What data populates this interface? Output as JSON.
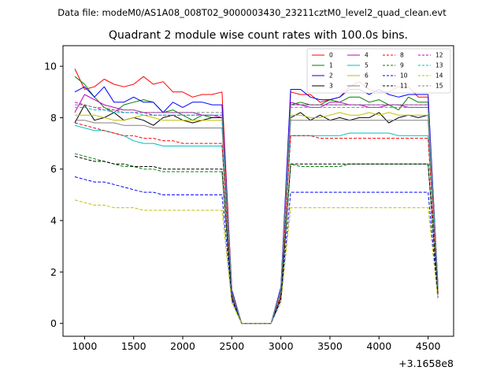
{
  "chart_data": {
    "type": "line",
    "suptitle": "Data file: modeM0/AS1A08_008T02_9000003430_23211cztM0_level2_quad_clean.evt",
    "title": "Quadrant 2 module wise count rates with 100.0s bins.",
    "xlabel": "",
    "ylabel": "",
    "x_offset_label": "+3.1658e8",
    "xlim": [
      780,
      4760
    ],
    "ylim": [
      -0.5,
      10.8
    ],
    "x_ticks": [
      1000,
      1500,
      2000,
      2500,
      3000,
      3500,
      4000,
      4500
    ],
    "x_tick_labels": [
      "1000",
      "1500",
      "2000",
      "2500",
      "3000",
      "3500",
      "4000",
      "4500"
    ],
    "y_ticks": [
      0,
      2,
      4,
      6,
      8,
      10
    ],
    "y_tick_labels": [
      "0",
      "2",
      "4",
      "6",
      "8",
      "10"
    ],
    "legend_location": "upper right",
    "legend_columns": 4,
    "x": [
      900,
      1000,
      1100,
      1200,
      1300,
      1400,
      1500,
      1600,
      1700,
      1800,
      1900,
      2000,
      2100,
      2200,
      2300,
      2400,
      2500,
      2600,
      2700,
      2800,
      2900,
      3000,
      3100,
      3200,
      3300,
      3400,
      3500,
      3600,
      3700,
      3800,
      3900,
      4000,
      4100,
      4200,
      4300,
      4400,
      4500,
      4600
    ],
    "series": [
      {
        "name": "0",
        "color": "#ff0000",
        "dash": "solid",
        "values": [
          9.9,
          9.1,
          9.2,
          9.5,
          9.3,
          9.2,
          9.3,
          9.6,
          9.3,
          9.4,
          9.0,
          9.0,
          8.8,
          8.9,
          8.9,
          9.0,
          1.3,
          0.0,
          0.0,
          0.0,
          0.0,
          1.4,
          9.0,
          8.9,
          8.9,
          8.6,
          8.7,
          8.8,
          9.2,
          9.4,
          9.1,
          9.0,
          9.0,
          9.2,
          9.2,
          8.8,
          8.8,
          1.5
        ]
      },
      {
        "name": "1",
        "color": "#008000",
        "dash": "solid",
        "values": [
          9.6,
          9.3,
          8.8,
          8.4,
          8.2,
          8.5,
          8.6,
          8.7,
          8.6,
          8.2,
          8.3,
          8.1,
          7.9,
          8.1,
          8.0,
          8.0,
          1.2,
          0.0,
          0.0,
          0.0,
          0.0,
          1.3,
          8.5,
          8.6,
          8.5,
          8.5,
          8.7,
          8.6,
          8.8,
          8.8,
          8.6,
          8.7,
          8.5,
          8.3,
          8.8,
          8.6,
          8.6,
          1.5
        ]
      },
      {
        "name": "2",
        "color": "#0000ff",
        "dash": "solid",
        "values": [
          9.0,
          9.2,
          8.8,
          9.2,
          8.6,
          8.6,
          8.8,
          8.6,
          8.6,
          8.2,
          8.6,
          8.4,
          8.6,
          8.6,
          8.5,
          8.5,
          1.3,
          0.0,
          0.0,
          0.0,
          0.0,
          1.4,
          9.1,
          9.1,
          8.8,
          8.7,
          8.7,
          8.8,
          9.1,
          9.1,
          8.9,
          9.1,
          8.9,
          8.8,
          8.9,
          8.9,
          8.9,
          1.4
        ]
      },
      {
        "name": "3",
        "color": "#000000",
        "dash": "solid",
        "values": [
          7.8,
          8.5,
          7.9,
          8.0,
          8.2,
          7.9,
          8.0,
          7.9,
          7.7,
          8.0,
          8.1,
          7.9,
          7.8,
          7.9,
          8.0,
          8.0,
          1.2,
          0.0,
          0.0,
          0.0,
          0.0,
          1.2,
          8.0,
          8.2,
          7.9,
          8.1,
          7.9,
          8.0,
          7.9,
          8.0,
          8.0,
          8.2,
          7.8,
          8.0,
          8.1,
          8.0,
          8.1,
          1.3
        ]
      },
      {
        "name": "4",
        "color": "#bf00bf",
        "dash": "solid",
        "values": [
          8.2,
          8.9,
          8.7,
          8.5,
          8.4,
          8.3,
          8.3,
          8.2,
          8.2,
          8.2,
          8.2,
          8.2,
          8.2,
          8.1,
          8.1,
          8.0,
          1.2,
          0.0,
          0.0,
          0.0,
          0.0,
          1.3,
          8.6,
          8.5,
          8.4,
          8.4,
          8.6,
          8.6,
          8.5,
          8.5,
          8.4,
          8.4,
          8.5,
          8.5,
          8.4,
          8.4,
          8.4,
          1.4
        ]
      },
      {
        "name": "5",
        "color": "#00bfbf",
        "dash": "solid",
        "values": [
          7.7,
          7.6,
          7.5,
          7.5,
          7.4,
          7.3,
          7.1,
          7.0,
          7.0,
          6.9,
          6.9,
          6.9,
          6.9,
          6.9,
          6.9,
          6.9,
          1.1,
          0.0,
          0.0,
          0.0,
          0.0,
          1.2,
          7.3,
          7.3,
          7.3,
          7.3,
          7.3,
          7.3,
          7.4,
          7.4,
          7.4,
          7.4,
          7.4,
          7.3,
          7.3,
          7.3,
          7.3,
          1.3
        ]
      },
      {
        "name": "6",
        "color": "#bfbf00",
        "dash": "solid",
        "values": [
          8.1,
          8.1,
          8.1,
          8.0,
          7.9,
          7.9,
          8.0,
          8.1,
          8.0,
          7.9,
          7.9,
          7.9,
          7.9,
          7.9,
          7.9,
          7.9,
          1.2,
          0.0,
          0.0,
          0.0,
          0.0,
          1.2,
          8.1,
          8.1,
          8.0,
          8.0,
          8.1,
          8.2,
          8.1,
          8.1,
          8.2,
          8.1,
          8.2,
          8.1,
          8.1,
          8.1,
          8.1,
          1.3
        ]
      },
      {
        "name": "7",
        "color": "#808080",
        "dash": "solid",
        "values": [
          7.9,
          7.9,
          7.8,
          7.8,
          7.8,
          7.7,
          7.7,
          7.7,
          7.6,
          7.6,
          7.6,
          7.6,
          7.6,
          7.6,
          7.6,
          7.6,
          1.1,
          0.0,
          0.0,
          0.0,
          0.0,
          1.2,
          7.9,
          7.9,
          7.9,
          7.9,
          7.9,
          7.9,
          7.9,
          7.9,
          7.9,
          7.9,
          7.9,
          7.9,
          7.9,
          7.9,
          7.9,
          1.3
        ]
      },
      {
        "name": "8",
        "color": "#ff0000",
        "dash": "dashed",
        "values": [
          7.8,
          7.7,
          7.6,
          7.5,
          7.4,
          7.3,
          7.3,
          7.2,
          7.2,
          7.1,
          7.1,
          7.0,
          7.0,
          7.0,
          7.0,
          7.0,
          1.1,
          0.0,
          0.0,
          0.0,
          0.0,
          1.1,
          7.3,
          7.3,
          7.3,
          7.2,
          7.2,
          7.2,
          7.2,
          7.2,
          7.2,
          7.2,
          7.2,
          7.2,
          7.2,
          7.2,
          7.2,
          1.2
        ]
      },
      {
        "name": "9",
        "color": "#008000",
        "dash": "dashed",
        "values": [
          6.6,
          6.5,
          6.4,
          6.3,
          6.2,
          6.1,
          6.1,
          6.0,
          6.0,
          5.9,
          5.9,
          5.9,
          5.9,
          5.9,
          5.9,
          5.9,
          1.0,
          0.0,
          0.0,
          0.0,
          0.0,
          1.0,
          6.2,
          6.1,
          6.1,
          6.1,
          6.1,
          6.1,
          6.2,
          6.2,
          6.2,
          6.2,
          6.2,
          6.2,
          6.2,
          6.2,
          6.2,
          1.1
        ]
      },
      {
        "name": "10",
        "color": "#0000ff",
        "dash": "dashed",
        "values": [
          5.7,
          5.6,
          5.5,
          5.5,
          5.4,
          5.3,
          5.2,
          5.1,
          5.1,
          5.0,
          5.0,
          5.0,
          5.0,
          5.0,
          5.0,
          5.0,
          0.9,
          0.0,
          0.0,
          0.0,
          0.0,
          0.9,
          5.1,
          5.1,
          5.1,
          5.1,
          5.1,
          5.1,
          5.1,
          5.1,
          5.1,
          5.1,
          5.1,
          5.1,
          5.1,
          5.1,
          5.1,
          1.0
        ]
      },
      {
        "name": "11",
        "color": "#000000",
        "dash": "dashed",
        "values": [
          6.5,
          6.4,
          6.3,
          6.3,
          6.2,
          6.2,
          6.1,
          6.1,
          6.1,
          6.0,
          6.0,
          6.0,
          6.0,
          6.0,
          6.0,
          6.0,
          1.0,
          0.0,
          0.0,
          0.0,
          0.0,
          1.0,
          6.2,
          6.2,
          6.2,
          6.2,
          6.2,
          6.2,
          6.2,
          6.2,
          6.2,
          6.2,
          6.2,
          6.2,
          6.2,
          6.2,
          6.2,
          1.1
        ]
      },
      {
        "name": "12",
        "color": "#bf00bf",
        "dash": "dashed",
        "values": [
          8.6,
          8.5,
          8.4,
          8.3,
          8.3,
          8.2,
          8.2,
          8.2,
          8.1,
          8.1,
          8.1,
          8.1,
          8.1,
          8.1,
          8.1,
          8.1,
          1.2,
          0.0,
          0.0,
          0.0,
          0.0,
          1.3,
          8.5,
          8.5,
          8.5,
          8.5,
          8.5,
          8.5,
          8.5,
          8.5,
          8.5,
          8.5,
          8.5,
          8.5,
          8.5,
          8.5,
          8.5,
          1.4
        ]
      },
      {
        "name": "13",
        "color": "#00bfbf",
        "dash": "dashed",
        "values": [
          8.4,
          8.4,
          8.3,
          8.3,
          8.2,
          8.2,
          8.2,
          8.1,
          8.1,
          8.1,
          8.1,
          8.1,
          8.1,
          8.1,
          8.1,
          8.1,
          1.2,
          0.0,
          0.0,
          0.0,
          0.0,
          1.3,
          8.4,
          8.4,
          8.4,
          8.4,
          8.4,
          8.4,
          8.4,
          8.4,
          8.4,
          8.4,
          8.4,
          8.4,
          8.4,
          8.4,
          8.4,
          1.4
        ]
      },
      {
        "name": "14",
        "color": "#bfbf00",
        "dash": "dashed",
        "values": [
          4.8,
          4.7,
          4.6,
          4.6,
          4.5,
          4.5,
          4.5,
          4.4,
          4.4,
          4.4,
          4.4,
          4.4,
          4.4,
          4.4,
          4.4,
          4.4,
          0.8,
          0.0,
          0.0,
          0.0,
          0.0,
          0.8,
          4.5,
          4.5,
          4.5,
          4.5,
          4.5,
          4.5,
          4.5,
          4.5,
          4.5,
          4.5,
          4.5,
          4.5,
          4.5,
          4.5,
          4.5,
          0.9
        ]
      },
      {
        "name": "15",
        "color": "#808080",
        "dash": "dashed",
        "values": [
          8.5,
          8.5,
          8.4,
          8.4,
          8.3,
          8.3,
          8.3,
          8.2,
          8.2,
          8.2,
          8.2,
          8.2,
          8.2,
          8.2,
          8.2,
          8.2,
          1.2,
          0.0,
          0.0,
          0.0,
          0.0,
          1.3,
          8.5,
          8.5,
          8.5,
          8.5,
          8.5,
          8.5,
          8.5,
          8.5,
          8.5,
          8.5,
          8.5,
          8.5,
          8.5,
          8.5,
          8.5,
          1.4
        ]
      }
    ]
  }
}
